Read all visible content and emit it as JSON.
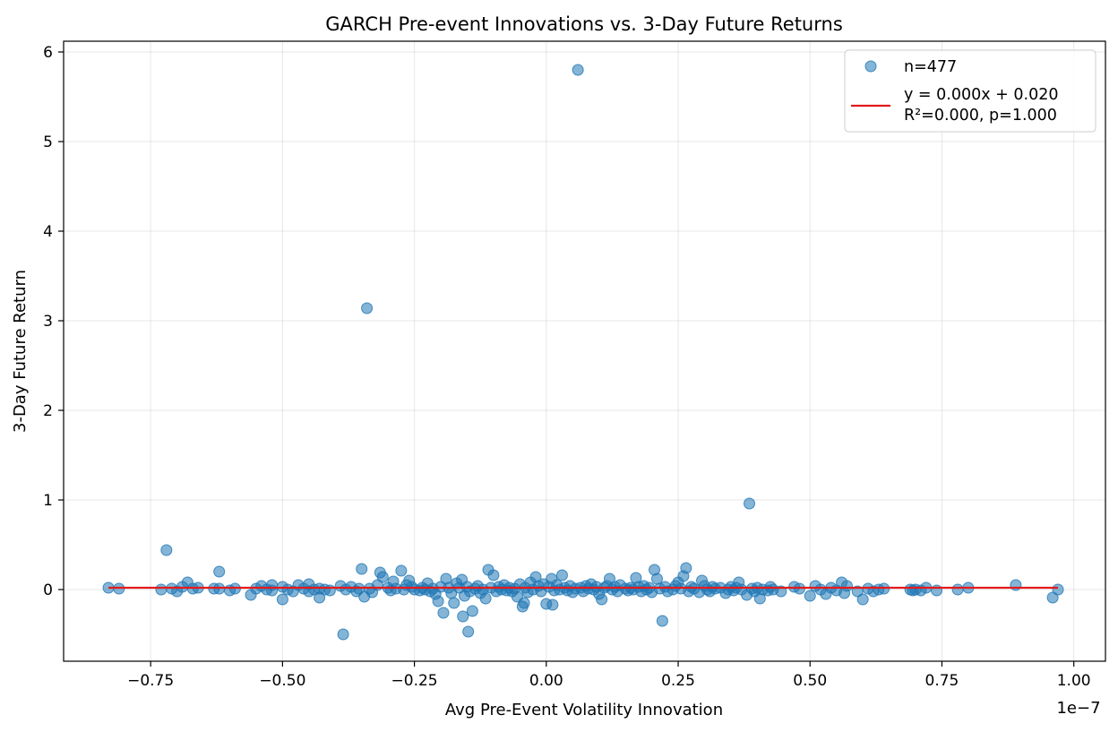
{
  "chart_data": {
    "type": "scatter",
    "title": "GARCH Pre-event Innovations vs. 3-Day Future Returns",
    "xlabel": "Avg Pre-Event Volatility Innovation",
    "ylabel": "3-Day Future Return",
    "x_scale_label": "1e−7",
    "xlim": [
      -0.915,
      1.06
    ],
    "ylim": [
      -0.8,
      6.12
    ],
    "x_ticks": [
      -0.75,
      -0.5,
      -0.25,
      0.0,
      0.25,
      0.5,
      0.75,
      1.0
    ],
    "x_tick_labels": [
      "−0.75",
      "−0.50",
      "−0.25",
      "0.00",
      "0.25",
      "0.50",
      "0.75",
      "1.00"
    ],
    "y_ticks": [
      0,
      1,
      2,
      3,
      4,
      5,
      6
    ],
    "y_tick_labels": [
      "0",
      "1",
      "2",
      "3",
      "4",
      "5",
      "6"
    ],
    "grid": true,
    "legend_position": "top-right",
    "colors": {
      "points": "#1f77b4",
      "fit_line": "#e41a1c"
    },
    "series": [
      {
        "name": "n=477",
        "kind": "scatter",
        "points": [
          [
            -0.83,
            0.02
          ],
          [
            -0.81,
            0.01
          ],
          [
            -0.72,
            0.44
          ],
          [
            -0.73,
            0.0
          ],
          [
            -0.71,
            0.01
          ],
          [
            -0.7,
            -0.02
          ],
          [
            -0.69,
            0.03
          ],
          [
            -0.68,
            0.08
          ],
          [
            -0.67,
            0.01
          ],
          [
            -0.66,
            0.02
          ],
          [
            -0.63,
            0.01
          ],
          [
            -0.62,
            0.2
          ],
          [
            -0.62,
            0.01
          ],
          [
            -0.6,
            -0.01
          ],
          [
            -0.59,
            0.01
          ],
          [
            -0.56,
            -0.06
          ],
          [
            -0.55,
            0.01
          ],
          [
            -0.54,
            0.04
          ],
          [
            -0.53,
            0.0
          ],
          [
            -0.52,
            0.05
          ],
          [
            -0.52,
            -0.01
          ],
          [
            -0.5,
            0.03
          ],
          [
            -0.5,
            -0.11
          ],
          [
            -0.49,
            0.0
          ],
          [
            -0.48,
            -0.02
          ],
          [
            -0.47,
            0.05
          ],
          [
            -0.46,
            0.01
          ],
          [
            -0.45,
            0.06
          ],
          [
            -0.45,
            -0.02
          ],
          [
            -0.44,
            0.0
          ],
          [
            -0.43,
            -0.09
          ],
          [
            -0.43,
            0.01
          ],
          [
            -0.42,
            0.0
          ],
          [
            -0.41,
            -0.01
          ],
          [
            -0.39,
            0.04
          ],
          [
            -0.385,
            -0.5
          ],
          [
            -0.38,
            0.0
          ],
          [
            -0.37,
            0.03
          ],
          [
            -0.36,
            -0.02
          ],
          [
            -0.355,
            0.01
          ],
          [
            -0.35,
            0.23
          ],
          [
            -0.345,
            -0.08
          ],
          [
            -0.34,
            3.14
          ],
          [
            -0.335,
            0.01
          ],
          [
            -0.33,
            -0.03
          ],
          [
            -0.32,
            0.05
          ],
          [
            -0.315,
            0.19
          ],
          [
            -0.31,
            0.14
          ],
          [
            -0.3,
            0.02
          ],
          [
            -0.295,
            -0.01
          ],
          [
            -0.29,
            0.09
          ],
          [
            -0.285,
            0.01
          ],
          [
            -0.275,
            0.21
          ],
          [
            -0.27,
            0.0
          ],
          [
            -0.265,
            0.05
          ],
          [
            -0.26,
            0.1
          ],
          [
            -0.255,
            0.03
          ],
          [
            -0.25,
            0.0
          ],
          [
            -0.24,
            -0.01
          ],
          [
            -0.235,
            0.02
          ],
          [
            -0.23,
            0.0
          ],
          [
            -0.225,
            0.07
          ],
          [
            -0.22,
            -0.02
          ],
          [
            -0.215,
            0.01
          ],
          [
            -0.21,
            -0.05
          ],
          [
            -0.205,
            -0.13
          ],
          [
            -0.2,
            0.03
          ],
          [
            -0.195,
            -0.26
          ],
          [
            -0.19,
            0.12
          ],
          [
            -0.185,
            0.02
          ],
          [
            -0.18,
            -0.04
          ],
          [
            -0.175,
            -0.15
          ],
          [
            -0.17,
            0.07
          ],
          [
            -0.165,
            0.02
          ],
          [
            -0.16,
            0.11
          ],
          [
            -0.158,
            -0.3
          ],
          [
            -0.155,
            -0.07
          ],
          [
            -0.15,
            0.03
          ],
          [
            -0.148,
            -0.47
          ],
          [
            -0.145,
            -0.02
          ],
          [
            -0.14,
            -0.24
          ],
          [
            -0.135,
            0.01
          ],
          [
            -0.13,
            0.04
          ],
          [
            -0.125,
            -0.04
          ],
          [
            -0.12,
            0.0
          ],
          [
            -0.115,
            -0.1
          ],
          [
            -0.11,
            0.22
          ],
          [
            -0.105,
            0.02
          ],
          [
            -0.1,
            0.16
          ],
          [
            -0.095,
            -0.02
          ],
          [
            -0.09,
            0.03
          ],
          [
            -0.085,
            0.0
          ],
          [
            -0.08,
            0.05
          ],
          [
            -0.075,
            -0.01
          ],
          [
            -0.07,
            0.02
          ],
          [
            -0.065,
            -0.02
          ],
          [
            -0.06,
            0.01
          ],
          [
            -0.055,
            -0.08
          ],
          [
            -0.05,
            0.06
          ],
          [
            -0.045,
            -0.19
          ],
          [
            -0.042,
            -0.15
          ],
          [
            -0.04,
            0.02
          ],
          [
            -0.035,
            -0.03
          ],
          [
            -0.03,
            0.08
          ],
          [
            -0.025,
            0.0
          ],
          [
            -0.02,
            0.14
          ],
          [
            -0.015,
            0.04
          ],
          [
            -0.01,
            -0.02
          ],
          [
            -0.005,
            0.06
          ],
          [
            0.0,
            -0.16
          ],
          [
            0.005,
            0.03
          ],
          [
            0.01,
            0.12
          ],
          [
            0.012,
            -0.17
          ],
          [
            0.015,
            -0.01
          ],
          [
            0.02,
            0.05
          ],
          [
            0.025,
            0.0
          ],
          [
            0.03,
            0.16
          ],
          [
            0.035,
            0.02
          ],
          [
            0.04,
            -0.01
          ],
          [
            0.045,
            0.04
          ],
          [
            0.05,
            -0.03
          ],
          [
            0.055,
            0.01
          ],
          [
            0.06,
            5.8
          ],
          [
            0.065,
            0.02
          ],
          [
            0.07,
            -0.02
          ],
          [
            0.075,
            0.04
          ],
          [
            0.08,
            0.01
          ],
          [
            0.085,
            0.06
          ],
          [
            0.09,
            0.0
          ],
          [
            0.095,
            0.03
          ],
          [
            0.1,
            -0.05
          ],
          [
            0.105,
            -0.11
          ],
          [
            0.11,
            0.02
          ],
          [
            0.115,
            0.04
          ],
          [
            0.12,
            0.12
          ],
          [
            0.125,
            0.0
          ],
          [
            0.13,
            0.03
          ],
          [
            0.135,
            -0.02
          ],
          [
            0.14,
            0.05
          ],
          [
            0.15,
            0.01
          ],
          [
            0.155,
            -0.01
          ],
          [
            0.16,
            0.02
          ],
          [
            0.165,
            0.0
          ],
          [
            0.17,
            0.13
          ],
          [
            0.175,
            0.03
          ],
          [
            0.18,
            -0.02
          ],
          [
            0.185,
            0.04
          ],
          [
            0.19,
            0.0
          ],
          [
            0.195,
            0.02
          ],
          [
            0.2,
            -0.03
          ],
          [
            0.205,
            0.22
          ],
          [
            0.21,
            0.12
          ],
          [
            0.215,
            0.01
          ],
          [
            0.22,
            -0.35
          ],
          [
            0.225,
            0.03
          ],
          [
            0.23,
            -0.02
          ],
          [
            0.24,
            0.0
          ],
          [
            0.245,
            0.04
          ],
          [
            0.25,
            0.08
          ],
          [
            0.255,
            0.01
          ],
          [
            0.26,
            0.15
          ],
          [
            0.265,
            0.24
          ],
          [
            0.27,
            -0.02
          ],
          [
            0.275,
            0.03
          ],
          [
            0.28,
            0.01
          ],
          [
            0.29,
            -0.03
          ],
          [
            0.295,
            0.1
          ],
          [
            0.3,
            0.04
          ],
          [
            0.305,
            0.0
          ],
          [
            0.31,
            -0.02
          ],
          [
            0.315,
            0.03
          ],
          [
            0.32,
            0.01
          ],
          [
            0.33,
            0.02
          ],
          [
            0.34,
            -0.04
          ],
          [
            0.345,
            0.0
          ],
          [
            0.35,
            0.03
          ],
          [
            0.355,
            -0.01
          ],
          [
            0.36,
            0.02
          ],
          [
            0.365,
            0.08
          ],
          [
            0.37,
            0.0
          ],
          [
            0.38,
            -0.06
          ],
          [
            0.385,
            0.96
          ],
          [
            0.39,
            0.01
          ],
          [
            0.395,
            -0.02
          ],
          [
            0.4,
            0.02
          ],
          [
            0.405,
            -0.1
          ],
          [
            0.41,
            0.0
          ],
          [
            0.42,
            -0.01
          ],
          [
            0.425,
            0.03
          ],
          [
            0.43,
            0.0
          ],
          [
            0.445,
            -0.02
          ],
          [
            0.47,
            0.03
          ],
          [
            0.48,
            0.01
          ],
          [
            0.5,
            -0.07
          ],
          [
            0.51,
            0.04
          ],
          [
            0.52,
            0.0
          ],
          [
            0.53,
            -0.05
          ],
          [
            0.54,
            0.02
          ],
          [
            0.55,
            -0.01
          ],
          [
            0.56,
            0.08
          ],
          [
            0.565,
            -0.04
          ],
          [
            0.57,
            0.04
          ],
          [
            0.59,
            -0.02
          ],
          [
            0.6,
            -0.11
          ],
          [
            0.61,
            0.01
          ],
          [
            0.62,
            -0.02
          ],
          [
            0.63,
            0.0
          ],
          [
            0.64,
            0.01
          ],
          [
            0.69,
            0.0
          ],
          [
            0.695,
            -0.01
          ],
          [
            0.7,
            0.0
          ],
          [
            0.71,
            -0.01
          ],
          [
            0.72,
            0.02
          ],
          [
            0.74,
            -0.01
          ],
          [
            0.78,
            0.0
          ],
          [
            0.8,
            0.02
          ],
          [
            0.89,
            0.05
          ],
          [
            0.96,
            -0.09
          ],
          [
            0.97,
            0.0
          ]
        ]
      },
      {
        "name": "y = 0.000x + 0.020",
        "name_line2": "R²=0.000, p=1.000",
        "kind": "line",
        "x": [
          -0.83,
          0.97
        ],
        "y": [
          0.02,
          0.02
        ]
      }
    ]
  }
}
